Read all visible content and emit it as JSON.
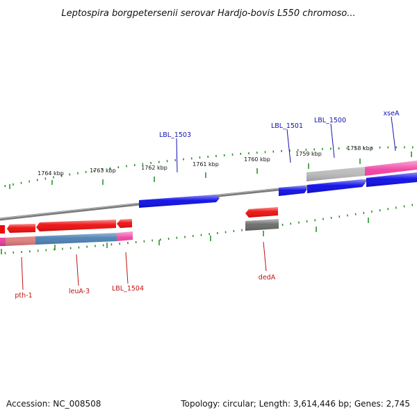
{
  "header": {
    "title": "Leptospira borgpetersenii serovar Hardjo-bovis L550 chromoso..."
  },
  "footer": {
    "accession": "Accession: NC_008508",
    "summary": "Topology: circular; Length: 3,614,446 bp; Genes: 2,745"
  },
  "colors": {
    "forward_gene": "#0b0be6",
    "reverse_gene": "#ee0b0b",
    "pink_feature": "#ef3fa0",
    "salmon_feature": "#e07d7d",
    "steelblue_feature": "#4a7fb3",
    "grey_feature": "#6a6a6a",
    "light_grey_feature": "#bdbdbd",
    "axis_tick": "#1f8a1f",
    "backbone": "#8a8a8a",
    "forward_label": "#1010b0",
    "reverse_label": "#c01010"
  },
  "axis_ticks": [
    {
      "label": "1764 kbp"
    },
    {
      "label": "1763 kbp"
    },
    {
      "label": "1762 kbp"
    },
    {
      "label": "1761 kbp"
    },
    {
      "label": "1760 kbp"
    },
    {
      "label": "1759 kbp"
    },
    {
      "label": "1758 kbp"
    }
  ],
  "forward_labels": [
    {
      "text": "LBL_1503"
    },
    {
      "text": "LBL_1501"
    },
    {
      "text": "LBL_1500"
    },
    {
      "text": "xseA"
    }
  ],
  "reverse_labels": [
    {
      "text": "pth-1"
    },
    {
      "text": "leuA-3"
    },
    {
      "text": "LBL_1504"
    },
    {
      "text": "dedA"
    }
  ]
}
